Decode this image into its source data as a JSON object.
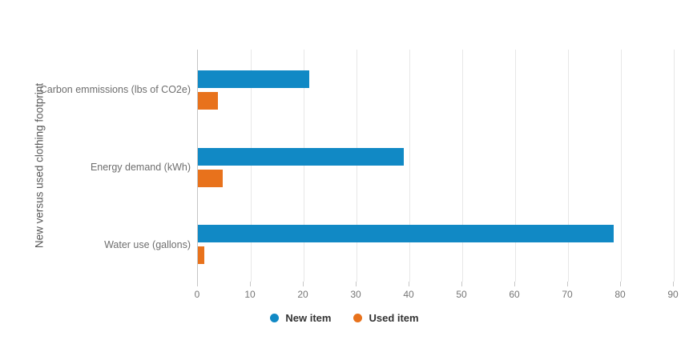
{
  "chart_data": {
    "type": "bar",
    "orientation": "horizontal",
    "ylabel": "New versus used clothing footprint",
    "categories": [
      "Carbon emmissions (lbs of CO2e)",
      "Energy demand (kWh)",
      "Water use (gallons)"
    ],
    "series": [
      {
        "name": "New item",
        "color": "#1189c5",
        "values": [
          21,
          39,
          78.6
        ]
      },
      {
        "name": "Used item",
        "color": "#e8721c",
        "values": [
          3.8,
          4.7,
          1.2
        ]
      }
    ],
    "xlim": [
      0,
      90
    ],
    "xticks": [
      0,
      10,
      20,
      30,
      40,
      50,
      60,
      70,
      80,
      90
    ],
    "grid": true,
    "legend_position": "bottom",
    "legend_marker": "circle"
  },
  "colors": {
    "background": "#ffffff",
    "gridline": "#e7e7e7",
    "axis_line": "#c6c6c6",
    "tick_label": "#757575",
    "category_label": "#6e6e6e",
    "axis_title": "#595959",
    "legend_text": "#333333"
  }
}
